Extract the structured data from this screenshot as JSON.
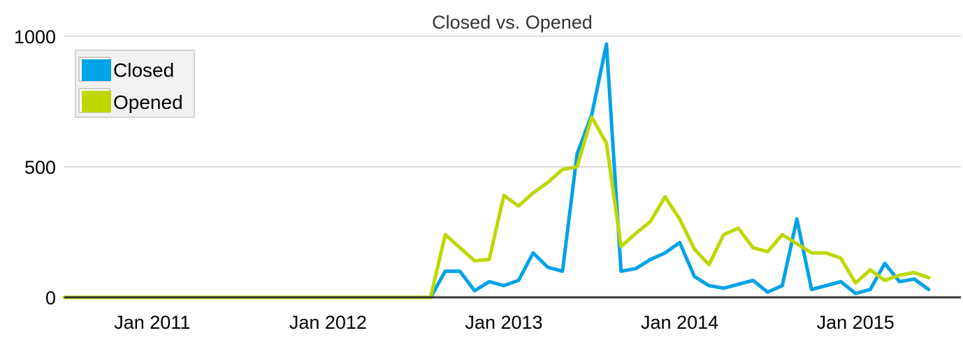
{
  "chart_data": {
    "type": "line",
    "title": "Closed vs. Opened",
    "xlabel": "",
    "ylabel": "",
    "ylim": [
      0,
      1000
    ],
    "y_ticks": [
      0,
      500,
      1000
    ],
    "y_tick_labels": [
      "0",
      "500",
      "1000"
    ],
    "x_ticks": [
      "2011-01",
      "2012-01",
      "2013-01",
      "2014-01",
      "2015-01"
    ],
    "x_tick_labels": [
      "Jan 2011",
      "Jan 2012",
      "Jan 2013",
      "Jan 2014",
      "Jan 2015"
    ],
    "xlim": [
      "2010-07",
      "2015-07"
    ],
    "grid": true,
    "legend_position": "top-left",
    "x": [
      "2010-07",
      "2010-08",
      "2010-09",
      "2010-10",
      "2010-11",
      "2010-12",
      "2011-01",
      "2011-02",
      "2011-03",
      "2011-04",
      "2011-05",
      "2011-06",
      "2011-07",
      "2011-08",
      "2011-09",
      "2011-10",
      "2011-11",
      "2011-12",
      "2012-01",
      "2012-02",
      "2012-03",
      "2012-04",
      "2012-05",
      "2012-06",
      "2012-07",
      "2012-08",
      "2012-09",
      "2012-10",
      "2012-11",
      "2012-12",
      "2013-01",
      "2013-02",
      "2013-03",
      "2013-04",
      "2013-05",
      "2013-06",
      "2013-07",
      "2013-08",
      "2013-09",
      "2013-10",
      "2013-11",
      "2013-12",
      "2014-01",
      "2014-02",
      "2014-03",
      "2014-04",
      "2014-05",
      "2014-06",
      "2014-07",
      "2014-08",
      "2014-09",
      "2014-10",
      "2014-11",
      "2014-12",
      "2015-01",
      "2015-02",
      "2015-03",
      "2015-04",
      "2015-05",
      "2015-06"
    ],
    "series": [
      {
        "name": "Closed",
        "color": "#00a2e8",
        "values": [
          0,
          0,
          0,
          0,
          0,
          0,
          0,
          0,
          0,
          0,
          0,
          0,
          0,
          0,
          0,
          0,
          0,
          0,
          0,
          0,
          0,
          0,
          0,
          0,
          0,
          0,
          100,
          100,
          25,
          60,
          45,
          65,
          170,
          115,
          100,
          550,
          700,
          970,
          100,
          110,
          145,
          170,
          210,
          80,
          45,
          35,
          50,
          65,
          20,
          45,
          300,
          30,
          45,
          60,
          15,
          30,
          130,
          60,
          70,
          30
        ]
      },
      {
        "name": "Opened",
        "color": "#bfd700",
        "values": [
          0,
          0,
          0,
          0,
          0,
          0,
          0,
          0,
          0,
          0,
          0,
          0,
          0,
          0,
          0,
          0,
          0,
          0,
          0,
          0,
          0,
          0,
          0,
          0,
          0,
          0,
          240,
          190,
          140,
          145,
          390,
          350,
          400,
          440,
          490,
          500,
          690,
          590,
          195,
          245,
          290,
          385,
          300,
          185,
          125,
          240,
          265,
          190,
          175,
          240,
          205,
          170,
          170,
          150,
          55,
          105,
          65,
          85,
          95,
          75
        ]
      }
    ]
  }
}
